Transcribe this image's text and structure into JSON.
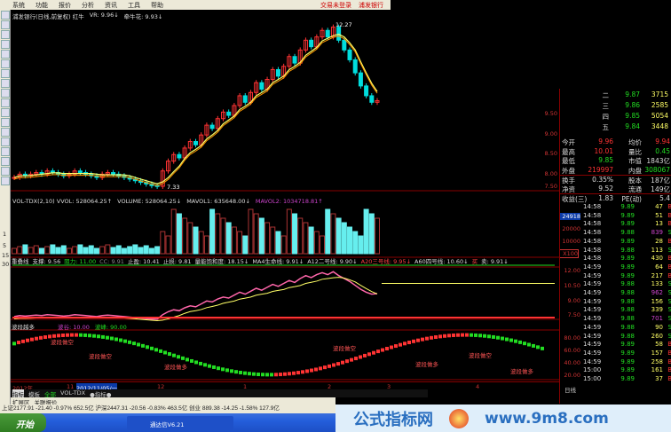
{
  "menu": {
    "items": [
      "系统",
      "功能",
      "报价",
      "分析",
      "资讯",
      "工具",
      "帮助"
    ],
    "right": [
      "交易未登录",
      "浦发银行"
    ]
  },
  "title": {
    "stock": "浦发银行(日线,前复权) 红牛",
    "vr": "VR: 9.96↓",
    "indicator": "牵牛花: 9.93↓"
  },
  "main_chart": {
    "high_label": "12.27",
    "low_label": "7.33",
    "price_axis": [
      "9.50",
      "9.00",
      "8.50",
      "8.00",
      "7.50"
    ]
  },
  "volume_pane": {
    "header": [
      "VOL-TDX(2,10) VVOL: 528064.25↑",
      "VOLUME: 528064.25↓",
      "MAVOL1: 635648.00↓",
      "MAVOL2: 1034718.81↑"
    ],
    "axis": [
      "24918",
      "20000",
      "10000",
      "X100"
    ],
    "left_axis": [
      "1",
      "5",
      "15",
      "30"
    ]
  },
  "indicator_pane": {
    "header": [
      "重叠线",
      "支撑: 9.56",
      "阻力: 11.00",
      "CC: 9.91",
      "止盈: 10.41",
      "止损: 9.81",
      "量能饱和度: 18.15↓",
      "MA4生命线: 9.91↓",
      "A12二号线: 9.90↓",
      "A20三号线: 9.95↓",
      "A60四号线: 10.60↓",
      "买",
      "卖: 9.91↓"
    ],
    "axis": [
      "12.00",
      "10.50",
      "9.00",
      "7.50"
    ],
    "left_axis": [
      "60",
      "30"
    ]
  },
  "band_pane": {
    "name": "波段越多",
    "params": [
      "波谷: 10.00",
      "波峰: 90.00"
    ],
    "labels": [
      "波段做空",
      "波段做空",
      "波段做多",
      "波段做空",
      "波段做多",
      "波段做空",
      "波段做多"
    ],
    "axis": [
      "80.00",
      "60.00",
      "40.00",
      "20.00"
    ],
    "left_axis": [
      "月",
      "多",
      "月",
      "多"
    ]
  },
  "date_axis": {
    "labels": [
      "2012年",
      "11",
      "2012/11/05/一",
      "12",
      "1",
      "2",
      "3",
      "4"
    ],
    "right": "日线"
  },
  "tabs": [
    "指标",
    "模板",
    "全部",
    "VOL-TDX",
    "●指标●"
  ],
  "ext": [
    "扩展区",
    "关联报价"
  ],
  "order_book": [
    {
      "level": "二",
      "price": "9.87",
      "vol": "3715"
    },
    {
      "level": "三",
      "price": "9.86",
      "vol": "2585"
    },
    {
      "level": "四",
      "price": "9.85",
      "vol": "5054"
    },
    {
      "level": "五",
      "price": "9.84",
      "vol": "3448"
    }
  ],
  "stats": [
    [
      "今开",
      "9.96",
      "均价",
      "9.94"
    ],
    [
      "最高",
      "10.01",
      "量比",
      "0.45"
    ],
    [
      "最低",
      "9.85",
      "市值",
      "1843亿"
    ],
    [
      "外盘",
      "219997",
      "内盘",
      "308067"
    ],
    [
      "换手",
      "0.35%",
      "股本",
      "187亿"
    ],
    [
      "净资",
      "9.52",
      "流通",
      "149亿"
    ],
    [
      "收益(三)",
      "1.83",
      "PE(动)",
      "5.4"
    ]
  ],
  "ticks": [
    [
      "14:58",
      "9.89",
      "47",
      "B"
    ],
    [
      "14:58",
      "9.89",
      "51",
      "B"
    ],
    [
      "14:58",
      "9.89",
      "13",
      "B"
    ],
    [
      "14:58",
      "9.88",
      "839",
      "S"
    ],
    [
      "14:58",
      "9.89",
      "28",
      "B"
    ],
    [
      "14:58",
      "9.88",
      "113",
      "S"
    ],
    [
      "14:58",
      "9.89",
      "430",
      "B"
    ],
    [
      "14:59",
      "9.89",
      "64",
      "B"
    ],
    [
      "14:59",
      "9.89",
      "217",
      "B"
    ],
    [
      "14:59",
      "9.88",
      "133",
      "S"
    ],
    [
      "14:59",
      "9.88",
      "962",
      "S"
    ],
    [
      "14:59",
      "9.88",
      "156",
      "S"
    ],
    [
      "14:59",
      "9.88",
      "339",
      "S"
    ],
    [
      "14:59",
      "9.88",
      "701",
      "S"
    ],
    [
      "14:59",
      "9.88",
      "90",
      "S"
    ],
    [
      "14:59",
      "9.88",
      "260",
      "S"
    ],
    [
      "14:59",
      "9.89",
      "58",
      "B"
    ],
    [
      "14:59",
      "9.89",
      "157",
      "B"
    ],
    [
      "14:59",
      "9.89",
      "258",
      "B"
    ],
    [
      "15:00",
      "9.89",
      "161",
      "B"
    ],
    [
      "15:00",
      "9.89",
      "37",
      "B"
    ]
  ],
  "ticker": "上证2177.91  -21.40  -0.97%  652.5亿  沪深2447.31  -20.56  -0.83%  463.5亿  创业 889.38  -14.25  -1.58%  127.9亿",
  "taskbar": {
    "start": "开始",
    "window": "通达信V6.21"
  },
  "banner": {
    "title": "公式指标网",
    "url": "www.9m8.com"
  },
  "colors": {
    "up": "#ff3333",
    "down": "#00e0e0",
    "ma": "#ffff66",
    "green": "#22dd22",
    "buy": "#ff3333",
    "sell": "#22dd22"
  },
  "chart_data": {
    "type": "candlestick",
    "closes": [
      7.6,
      7.7,
      7.65,
      7.7,
      7.75,
      7.7,
      7.8,
      7.75,
      7.7,
      7.65,
      7.7,
      7.8,
      7.75,
      7.7,
      7.65,
      7.6,
      7.7,
      7.75,
      7.7,
      7.65,
      7.6,
      7.55,
      7.5,
      7.45,
      7.4,
      7.35,
      7.33,
      7.8,
      8.1,
      8.3,
      8.2,
      8.5,
      8.7,
      8.6,
      8.9,
      9.2,
      9.1,
      9.4,
      9.6,
      9.5,
      9.8,
      10.1,
      9.9,
      10.2,
      10.5,
      10.3,
      10.6,
      10.9,
      10.7,
      11.0,
      11.3,
      11.1,
      11.5,
      11.8,
      11.6,
      11.9,
      12.1,
      11.9,
      12.2,
      11.8,
      11.5,
      11.2,
      10.8,
      10.4,
      10.1,
      9.9,
      9.95
    ],
    "high": 12.27,
    "low": 7.33
  }
}
